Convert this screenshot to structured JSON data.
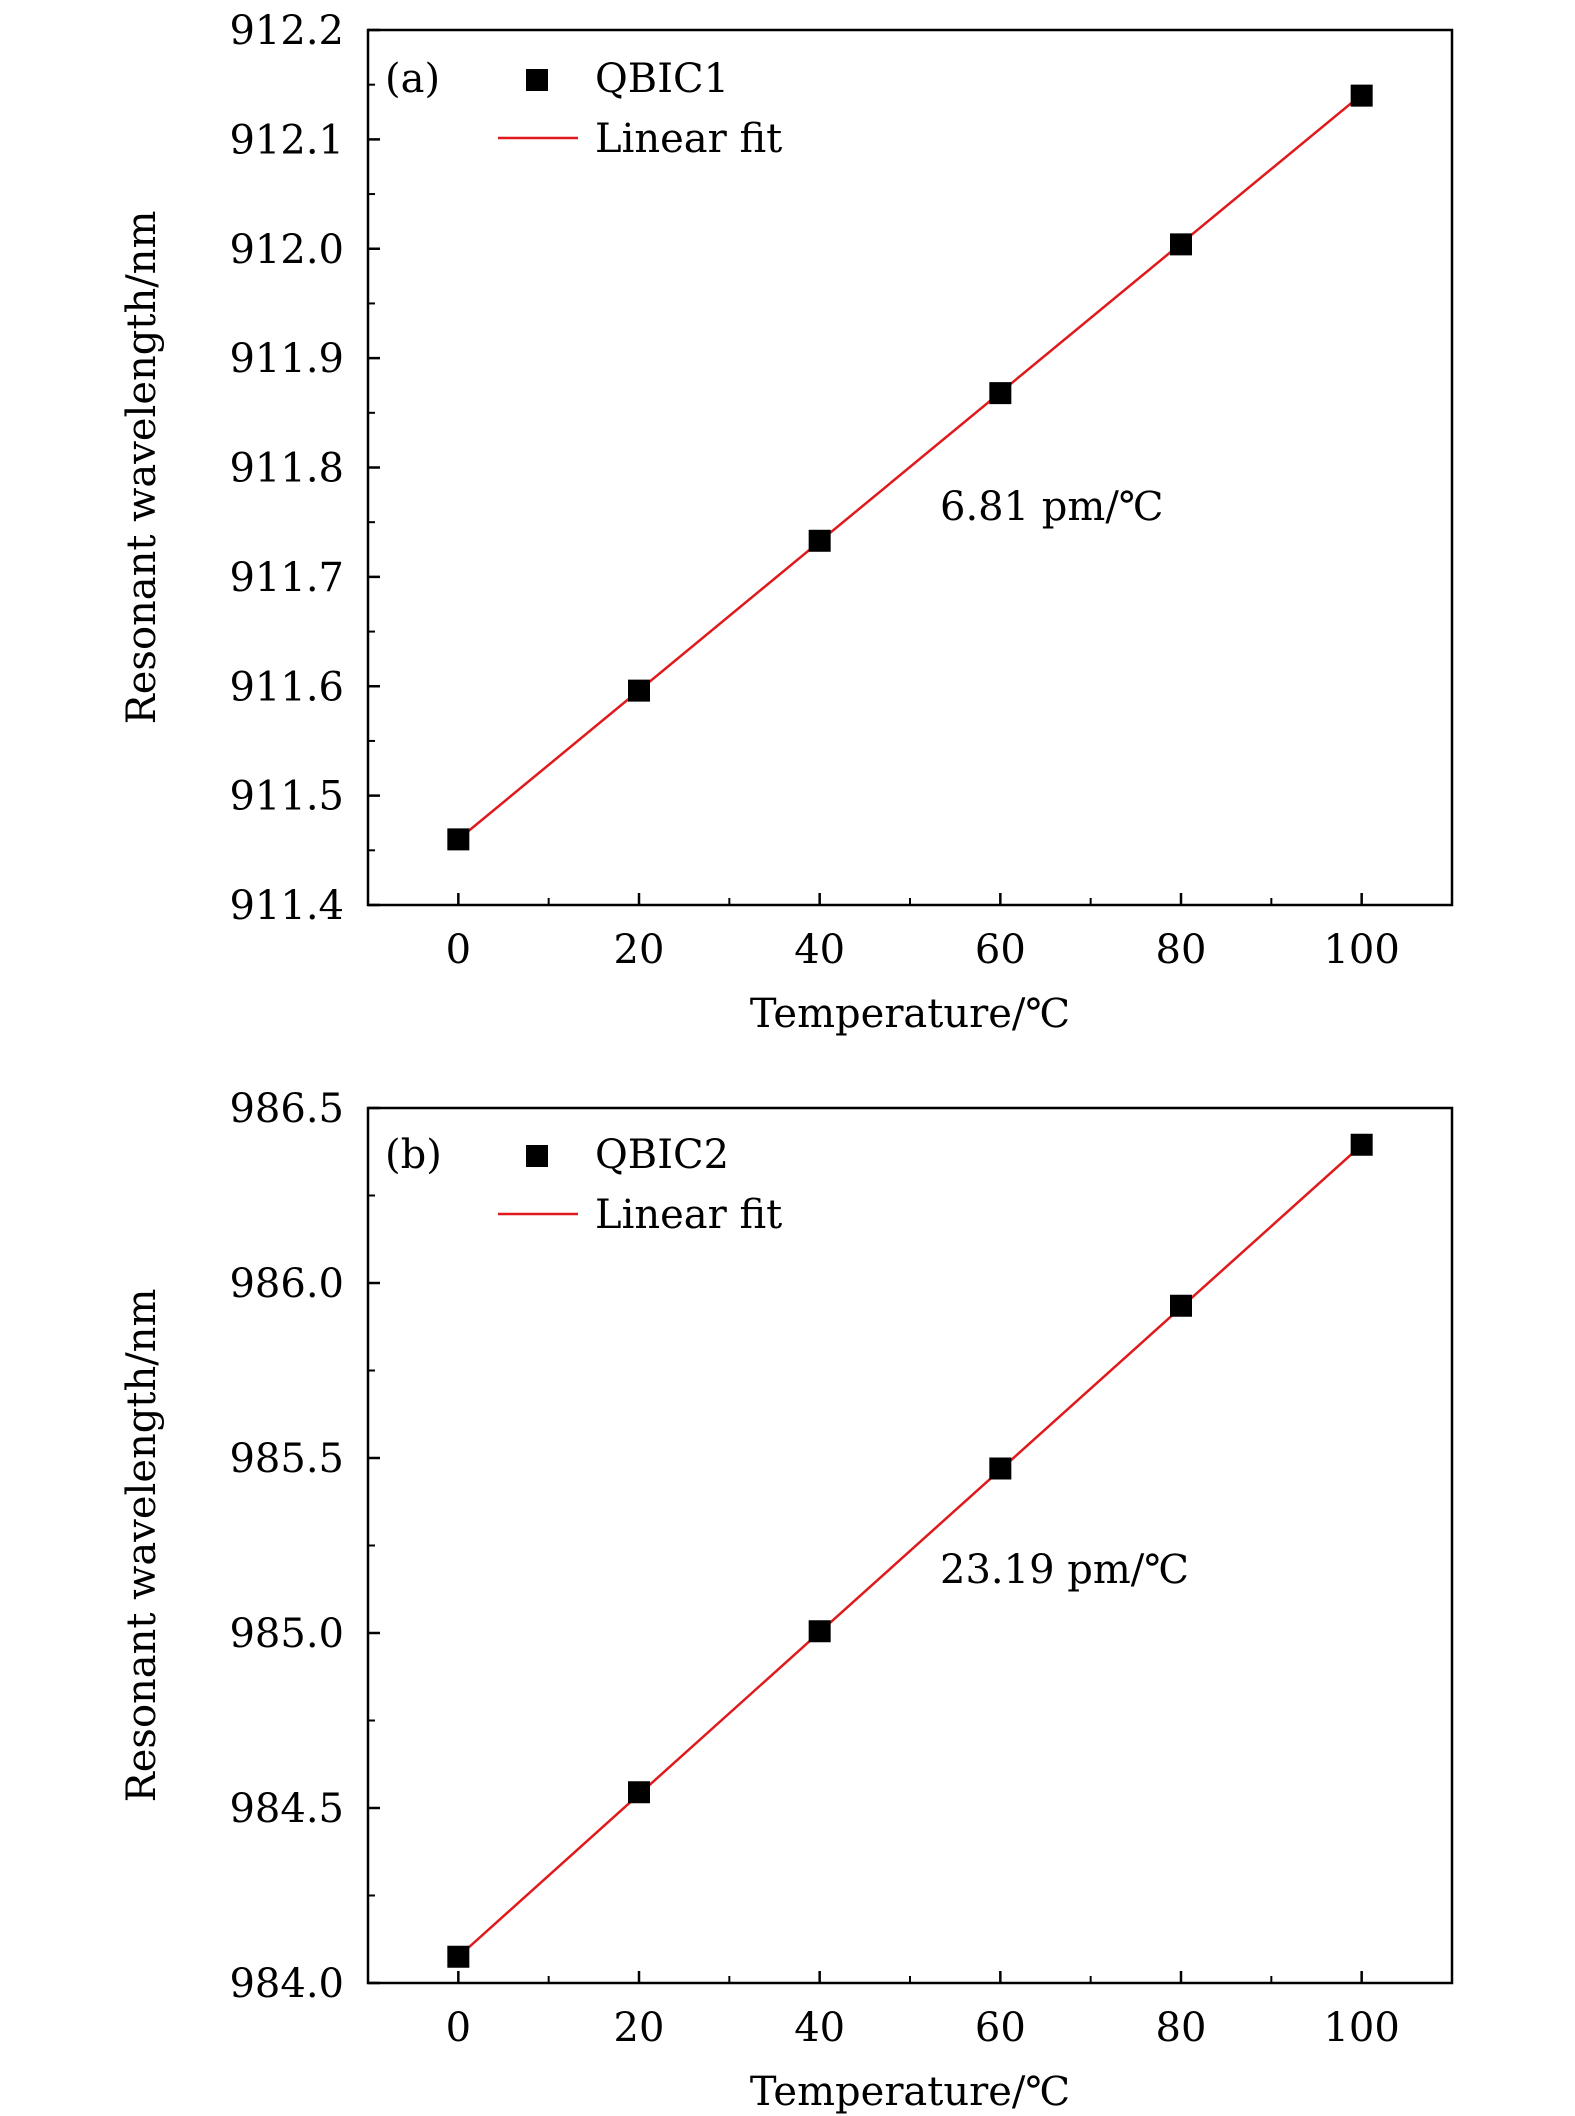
{
  "chart_data": [
    {
      "type": "scatter",
      "panel_label": "(a)",
      "xlabel": "Temperature/℃",
      "ylabel": "Resonant wavelength/nm",
      "xlim": [
        -10,
        110
      ],
      "ylim": [
        911.4,
        912.2
      ],
      "xticks": [
        "0",
        "20",
        "40",
        "60",
        "80",
        "100"
      ],
      "xtick_values": [
        0,
        20,
        40,
        60,
        80,
        100
      ],
      "yticks": [
        "911.4",
        "911.5",
        "911.6",
        "911.7",
        "911.8",
        "911.9",
        "912.0",
        "912.1",
        "912.2"
      ],
      "ytick_values": [
        911.4,
        911.5,
        911.6,
        911.7,
        911.8,
        911.9,
        912.0,
        912.1,
        912.2
      ],
      "series": [
        {
          "name": "QBIC1",
          "x": [
            0,
            20,
            40,
            60,
            80,
            100
          ],
          "y": [
            911.46,
            911.596,
            911.733,
            911.868,
            912.004,
            912.14
          ]
        }
      ],
      "fit": {
        "name": "Linear fit",
        "x": [
          0,
          100
        ],
        "y": [
          911.46,
          912.141
        ],
        "color": "#e0191c"
      },
      "annotation": "6.81 pm/℃",
      "legend_position": "top-left"
    },
    {
      "type": "scatter",
      "panel_label": "(b)",
      "xlabel": "Temperature/℃",
      "ylabel": "Resonant wavelength/nm",
      "xlim": [
        -10,
        110
      ],
      "ylim": [
        984.0,
        986.5
      ],
      "xticks": [
        "0",
        "20",
        "40",
        "60",
        "80",
        "100"
      ],
      "xtick_values": [
        0,
        20,
        40,
        60,
        80,
        100
      ],
      "yticks": [
        "984.0",
        "984.5",
        "985.0",
        "985.5",
        "986.0",
        "986.5"
      ],
      "ytick_values": [
        984.0,
        984.5,
        985.0,
        985.5,
        986.0,
        986.5
      ],
      "series": [
        {
          "name": "QBIC2",
          "x": [
            0,
            20,
            40,
            60,
            80,
            100
          ],
          "y": [
            984.075,
            984.545,
            985.005,
            985.47,
            985.935,
            986.395
          ]
        }
      ],
      "fit": {
        "name": "Linear fit",
        "x": [
          0,
          100
        ],
        "y": [
          984.075,
          986.394
        ],
        "color": "#e0191c"
      },
      "annotation": "23.19 pm/℃",
      "legend_position": "top-left"
    }
  ]
}
